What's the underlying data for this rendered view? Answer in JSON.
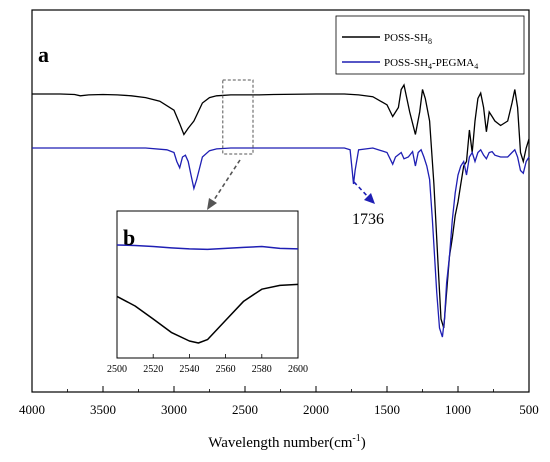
{
  "chart_data": [
    {
      "type": "line",
      "panel_label": "a",
      "xlabel": "Wavelength number(cm",
      "xlabel_sup": "-1",
      "xlabel_close": ")",
      "xlim": [
        4000,
        500
      ],
      "x_reversed": true,
      "xticks": [
        4000,
        3500,
        3000,
        2500,
        2000,
        1500,
        1000,
        500
      ],
      "y_axis_labels": false,
      "legend": {
        "placement": "top-right",
        "entries": [
          {
            "base": "POSS-SH",
            "sub": "8",
            "mid": "",
            "sub2": "",
            "color": "#000000"
          },
          {
            "base": "POSS-SH",
            "sub": "4",
            "mid": "-PEGMA",
            "sub2": "4",
            "color": "#1f1fb4"
          }
        ]
      },
      "annotation": {
        "text": "1736",
        "x": 1736
      },
      "series": [
        {
          "name": "POSS-SH8",
          "color": "#000000",
          "points": [
            [
              4000,
              0.0
            ],
            [
              3800,
              0.0
            ],
            [
              3700,
              -0.005
            ],
            [
              3660,
              -0.02
            ],
            [
              3600,
              -0.01
            ],
            [
              3500,
              -0.005
            ],
            [
              3400,
              -0.01
            ],
            [
              3300,
              -0.02
            ],
            [
              3200,
              -0.04
            ],
            [
              3100,
              -0.08
            ],
            [
              3000,
              -0.18
            ],
            [
              2960,
              -0.33
            ],
            [
              2930,
              -0.45
            ],
            [
              2900,
              -0.38
            ],
            [
              2860,
              -0.3
            ],
            [
              2800,
              -0.1
            ],
            [
              2750,
              -0.04
            ],
            [
              2700,
              -0.02
            ],
            [
              2600,
              -0.01
            ],
            [
              2500,
              -0.01
            ],
            [
              2400,
              -0.01
            ],
            [
              2300,
              -0.005
            ],
            [
              2000,
              0.0
            ],
            [
              1800,
              0.0
            ],
            [
              1700,
              -0.01
            ],
            [
              1600,
              -0.03
            ],
            [
              1500,
              -0.12
            ],
            [
              1460,
              -0.25
            ],
            [
              1420,
              -0.15
            ],
            [
              1400,
              0.05
            ],
            [
              1380,
              0.1
            ],
            [
              1340,
              -0.2
            ],
            [
              1300,
              -0.45
            ],
            [
              1270,
              -0.2
            ],
            [
              1250,
              0.05
            ],
            [
              1230,
              -0.05
            ],
            [
              1200,
              -0.3
            ],
            [
              1170,
              -1.0
            ],
            [
              1140,
              -1.9
            ],
            [
              1120,
              -2.5
            ],
            [
              1100,
              -2.6
            ],
            [
              1085,
              -2.3
            ],
            [
              1060,
              -1.8
            ],
            [
              1040,
              -1.6
            ],
            [
              1020,
              -1.35
            ],
            [
              1000,
              -1.2
            ],
            [
              980,
              -1.0
            ],
            [
              960,
              -0.8
            ],
            [
              940,
              -0.75
            ],
            [
              920,
              -0.4
            ],
            [
              900,
              -0.65
            ],
            [
              880,
              -0.3
            ],
            [
              860,
              -0.05
            ],
            [
              840,
              0.01
            ],
            [
              820,
              -0.15
            ],
            [
              800,
              -0.42
            ],
            [
              780,
              -0.2
            ],
            [
              760,
              -0.25
            ],
            [
              740,
              -0.3
            ],
            [
              700,
              -0.35
            ],
            [
              650,
              -0.3
            ],
            [
              620,
              -0.1
            ],
            [
              600,
              0.05
            ],
            [
              580,
              -0.15
            ],
            [
              560,
              -0.65
            ],
            [
              540,
              -0.75
            ],
            [
              520,
              -0.6
            ],
            [
              500,
              -0.5
            ]
          ]
        },
        {
          "name": "POSS-SH4-PEGMA4",
          "color": "#1f1fb4",
          "points": [
            [
              4000,
              -0.6
            ],
            [
              3500,
              -0.6
            ],
            [
              3200,
              -0.6
            ],
            [
              3050,
              -0.62
            ],
            [
              3000,
              -0.65
            ],
            [
              2980,
              -0.75
            ],
            [
              2960,
              -0.82
            ],
            [
              2940,
              -0.7
            ],
            [
              2920,
              -0.68
            ],
            [
              2900,
              -0.75
            ],
            [
              2880,
              -0.9
            ],
            [
              2860,
              -1.05
            ],
            [
              2840,
              -0.95
            ],
            [
              2800,
              -0.7
            ],
            [
              2750,
              -0.63
            ],
            [
              2700,
              -0.61
            ],
            [
              2600,
              -0.6
            ],
            [
              2500,
              -0.6
            ],
            [
              2000,
              -0.6
            ],
            [
              1800,
              -0.6
            ],
            [
              1760,
              -0.62
            ],
            [
              1745,
              -0.85
            ],
            [
              1736,
              -1.0
            ],
            [
              1725,
              -0.85
            ],
            [
              1700,
              -0.62
            ],
            [
              1600,
              -0.6
            ],
            [
              1500,
              -0.65
            ],
            [
              1460,
              -0.78
            ],
            [
              1440,
              -0.7
            ],
            [
              1400,
              -0.65
            ],
            [
              1380,
              -0.72
            ],
            [
              1350,
              -0.7
            ],
            [
              1320,
              -0.64
            ],
            [
              1300,
              -0.8
            ],
            [
              1280,
              -0.65
            ],
            [
              1260,
              -0.62
            ],
            [
              1240,
              -0.7
            ],
            [
              1220,
              -0.8
            ],
            [
              1200,
              -0.95
            ],
            [
              1180,
              -1.4
            ],
            [
              1150,
              -2.2
            ],
            [
              1130,
              -2.6
            ],
            [
              1110,
              -2.7
            ],
            [
              1095,
              -2.5
            ],
            [
              1080,
              -2.1
            ],
            [
              1060,
              -1.8
            ],
            [
              1040,
              -1.4
            ],
            [
              1020,
              -1.1
            ],
            [
              1000,
              -0.9
            ],
            [
              980,
              -0.8
            ],
            [
              960,
              -0.75
            ],
            [
              940,
              -0.9
            ],
            [
              920,
              -0.7
            ],
            [
              900,
              -0.65
            ],
            [
              880,
              -0.75
            ],
            [
              860,
              -0.65
            ],
            [
              840,
              -0.62
            ],
            [
              820,
              -0.68
            ],
            [
              800,
              -0.72
            ],
            [
              780,
              -0.65
            ],
            [
              760,
              -0.64
            ],
            [
              740,
              -0.68
            ],
            [
              700,
              -0.7
            ],
            [
              650,
              -0.7
            ],
            [
              620,
              -0.65
            ],
            [
              600,
              -0.62
            ],
            [
              580,
              -0.7
            ],
            [
              560,
              -0.85
            ],
            [
              540,
              -0.88
            ],
            [
              520,
              -0.75
            ],
            [
              500,
              -0.7
            ]
          ]
        }
      ]
    },
    {
      "type": "line",
      "panel_label": "b",
      "role": "inset",
      "zoom_region_x": [
        2500,
        2600
      ],
      "xlim": [
        2500,
        2600
      ],
      "xticks": [
        2500,
        2520,
        2540,
        2560,
        2580,
        2600
      ],
      "series": [
        {
          "name": "POSS-SH8",
          "color": "#000000",
          "points": [
            [
              2500,
              -0.55
            ],
            [
              2510,
              -0.75
            ],
            [
              2520,
              -1.02
            ],
            [
              2530,
              -1.3
            ],
            [
              2540,
              -1.48
            ],
            [
              2545,
              -1.52
            ],
            [
              2550,
              -1.45
            ],
            [
              2560,
              -1.05
            ],
            [
              2570,
              -0.65
            ],
            [
              2580,
              -0.4
            ],
            [
              2590,
              -0.32
            ],
            [
              2600,
              -0.3
            ]
          ]
        },
        {
          "name": "POSS-SH4-PEGMA4",
          "color": "#1f1fb4",
          "points": [
            [
              2500,
              0.52
            ],
            [
              2510,
              0.51
            ],
            [
              2520,
              0.49
            ],
            [
              2530,
              0.46
            ],
            [
              2540,
              0.44
            ],
            [
              2550,
              0.43
            ],
            [
              2560,
              0.45
            ],
            [
              2570,
              0.47
            ],
            [
              2580,
              0.49
            ],
            [
              2590,
              0.45
            ],
            [
              2600,
              0.44
            ]
          ]
        }
      ]
    }
  ]
}
